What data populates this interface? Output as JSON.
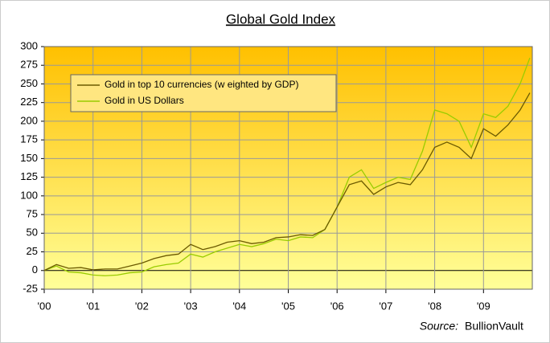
{
  "chart_data": {
    "type": "line",
    "title": "Global Gold Index",
    "x": [
      2000,
      2000.25,
      2000.5,
      2000.75,
      2001,
      2001.25,
      2001.5,
      2001.75,
      2002,
      2002.25,
      2002.5,
      2002.75,
      2003,
      2003.25,
      2003.5,
      2003.75,
      2004,
      2004.25,
      2004.5,
      2004.75,
      2005,
      2005.25,
      2005.5,
      2005.75,
      2006,
      2006.25,
      2006.5,
      2006.75,
      2007,
      2007.25,
      2007.5,
      2007.75,
      2008,
      2008.25,
      2008.5,
      2008.75,
      2009,
      2009.25,
      2009.5,
      2009.75,
      2009.95
    ],
    "series": [
      {
        "name": "Gold in top 10 currencies (w eighted by GDP)",
        "color": "#6b5a00",
        "values": [
          0,
          8,
          3,
          4,
          1,
          2,
          2,
          6,
          10,
          16,
          20,
          22,
          35,
          28,
          32,
          38,
          40,
          36,
          38,
          44,
          45,
          48,
          47,
          55,
          85,
          115,
          120,
          102,
          112,
          118,
          115,
          135,
          165,
          172,
          165,
          150,
          190,
          180,
          195,
          215,
          238
        ]
      },
      {
        "name": "Gold in US Dollars",
        "color": "#99cc00",
        "values": [
          0,
          6,
          -2,
          -3,
          -6,
          -7,
          -6,
          -3,
          -2,
          5,
          8,
          10,
          22,
          18,
          25,
          30,
          35,
          32,
          36,
          42,
          40,
          45,
          44,
          55,
          85,
          125,
          135,
          110,
          118,
          125,
          122,
          160,
          215,
          210,
          200,
          165,
          210,
          205,
          220,
          250,
          285
        ]
      }
    ],
    "xlim": [
      2000,
      2010
    ],
    "xticks": [
      {
        "value": 2000,
        "label": "'00"
      },
      {
        "value": 2001,
        "label": "'01"
      },
      {
        "value": 2002,
        "label": "'02"
      },
      {
        "value": 2003,
        "label": "'03"
      },
      {
        "value": 2004,
        "label": "'04"
      },
      {
        "value": 2005,
        "label": "'05"
      },
      {
        "value": 2006,
        "label": "'06"
      },
      {
        "value": 2007,
        "label": "'07"
      },
      {
        "value": 2008,
        "label": "'08"
      },
      {
        "value": 2009,
        "label": "'09"
      }
    ],
    "ylim": [
      -25,
      300
    ],
    "yticks": [
      -25,
      0,
      25,
      50,
      75,
      100,
      125,
      150,
      175,
      200,
      225,
      250,
      275,
      300
    ],
    "grid": true,
    "legend": "top-left",
    "source_label": "Source:",
    "source": "BullionVault"
  }
}
